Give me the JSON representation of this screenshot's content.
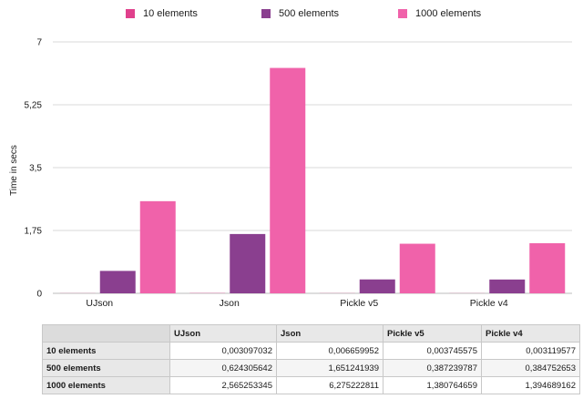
{
  "chart_data": {
    "type": "bar",
    "categories": [
      "UJson",
      "Json",
      "Pickle v5",
      "Pickle v4"
    ],
    "series": [
      {
        "name": "10 elements",
        "color": "#e0408c",
        "values": [
          0.003097032,
          0.006659952,
          0.003745575,
          0.003119577
        ]
      },
      {
        "name": "500 elements",
        "color": "#8a3f8f",
        "values": [
          0.624305642,
          1.651241939,
          0.387239787,
          0.384752653
        ]
      },
      {
        "name": "1000 elements",
        "color": "#f062aa",
        "values": [
          2.565253345,
          6.275222811,
          1.380764659,
          1.394689162
        ]
      }
    ],
    "ylabel": "Time in secs",
    "xlabel": "",
    "ylim": [
      0,
      7
    ],
    "yticks": [
      "0",
      "1,75",
      "3,5",
      "5,25",
      "7"
    ],
    "grid": true,
    "legend_position": "top"
  },
  "table": {
    "headers": [
      "",
      "UJson",
      "Json",
      "Pickle v5",
      "Pickle v4"
    ],
    "rows": [
      {
        "label": "10 elements",
        "values": [
          "0,003097032",
          "0,006659952",
          "0,003745575",
          "0,003119577"
        ]
      },
      {
        "label": "500 elements",
        "values": [
          "0,624305642",
          "1,651241939",
          "0,387239787",
          "0,384752653"
        ]
      },
      {
        "label": "1000 elements",
        "values": [
          "2,565253345",
          "6,275222811",
          "1,380764659",
          "1,394689162"
        ]
      }
    ]
  }
}
